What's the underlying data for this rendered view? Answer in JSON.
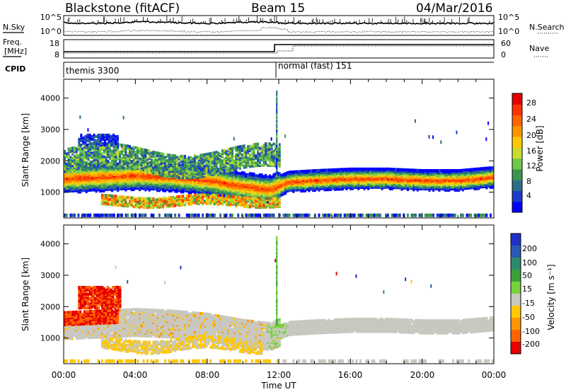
{
  "header": {
    "radar": "Blackstone (fitACF)",
    "beam": "Beam 15",
    "date": "04/Mar/2016"
  },
  "noise_panel": {
    "left_label": "N.Sky",
    "right_label": "N.Search",
    "left_ticks": [
      "10^5",
      "10^0"
    ],
    "right_ticks": [
      "10^5",
      "10^0"
    ]
  },
  "freq_panel": {
    "left_label_1": "Freq.",
    "left_label_2": "[MHz]",
    "right_label": "Nave",
    "left_ticks": [
      "18",
      "8"
    ],
    "right_ticks": [
      "60",
      "0"
    ]
  },
  "cpid_panel": {
    "label": "CPID",
    "mode_1": "themis 3300",
    "mode_2": "normal (fast) 151",
    "switch_time_hours": 12
  },
  "power_panel": {
    "colorbar_label": "Power [dB]",
    "colorbar_ticks": [
      "28",
      "24",
      "20",
      "16",
      "12",
      "8",
      "4"
    ],
    "colors": [
      "#0000ff",
      "#1a3cc8",
      "#2e6e8c",
      "#3c9650",
      "#6ec84a",
      "#c8dc32",
      "#ffc800",
      "#ff9600",
      "#ff6400",
      "#ff3200",
      "#e60000"
    ]
  },
  "velocity_panel": {
    "colorbar_label": "Velocity [m s⁻¹]",
    "colorbar_ticks": [
      "200",
      "100",
      "50",
      "15",
      "-15",
      "-50",
      "-100",
      "-200"
    ],
    "colors": [
      "#1e32c8",
      "#2a5ab4",
      "#2e8a6e",
      "#3ca03c",
      "#78d23c",
      "#c8c8c0",
      "#ffc800",
      "#ff9600",
      "#ff6400",
      "#e60000"
    ]
  },
  "chart_data": {
    "type": "heatmap",
    "title": "Blackstone (fitACF)   Beam 15   04/Mar/2016",
    "xlabel": "Time UT",
    "ylabel": "Slant Range [km]",
    "x_ticks": [
      "00:00",
      "04:00",
      "08:00",
      "12:00",
      "16:00",
      "20:00",
      "00:00"
    ],
    "y_ticks": [
      "1000",
      "2000",
      "3000",
      "4000"
    ],
    "xlim_hours": [
      0,
      24
    ],
    "ylim_km": [
      180,
      4600
    ],
    "power_band_km": [
      {
        "t": 0,
        "r": 1450
      },
      {
        "t": 2,
        "r": 1500
      },
      {
        "t": 4,
        "r": 1550
      },
      {
        "t": 6,
        "r": 1500
      },
      {
        "t": 8,
        "r": 1400
      },
      {
        "t": 10,
        "r": 1200
      },
      {
        "t": 11.5,
        "r": 1100
      },
      {
        "t": 12.5,
        "r": 1350
      },
      {
        "t": 14,
        "r": 1400
      },
      {
        "t": 16,
        "r": 1450
      },
      {
        "t": 18,
        "r": 1450
      },
      {
        "t": 20,
        "r": 1400
      },
      {
        "t": 22,
        "r": 1400
      },
      {
        "t": 24,
        "r": 1500
      }
    ]
  }
}
